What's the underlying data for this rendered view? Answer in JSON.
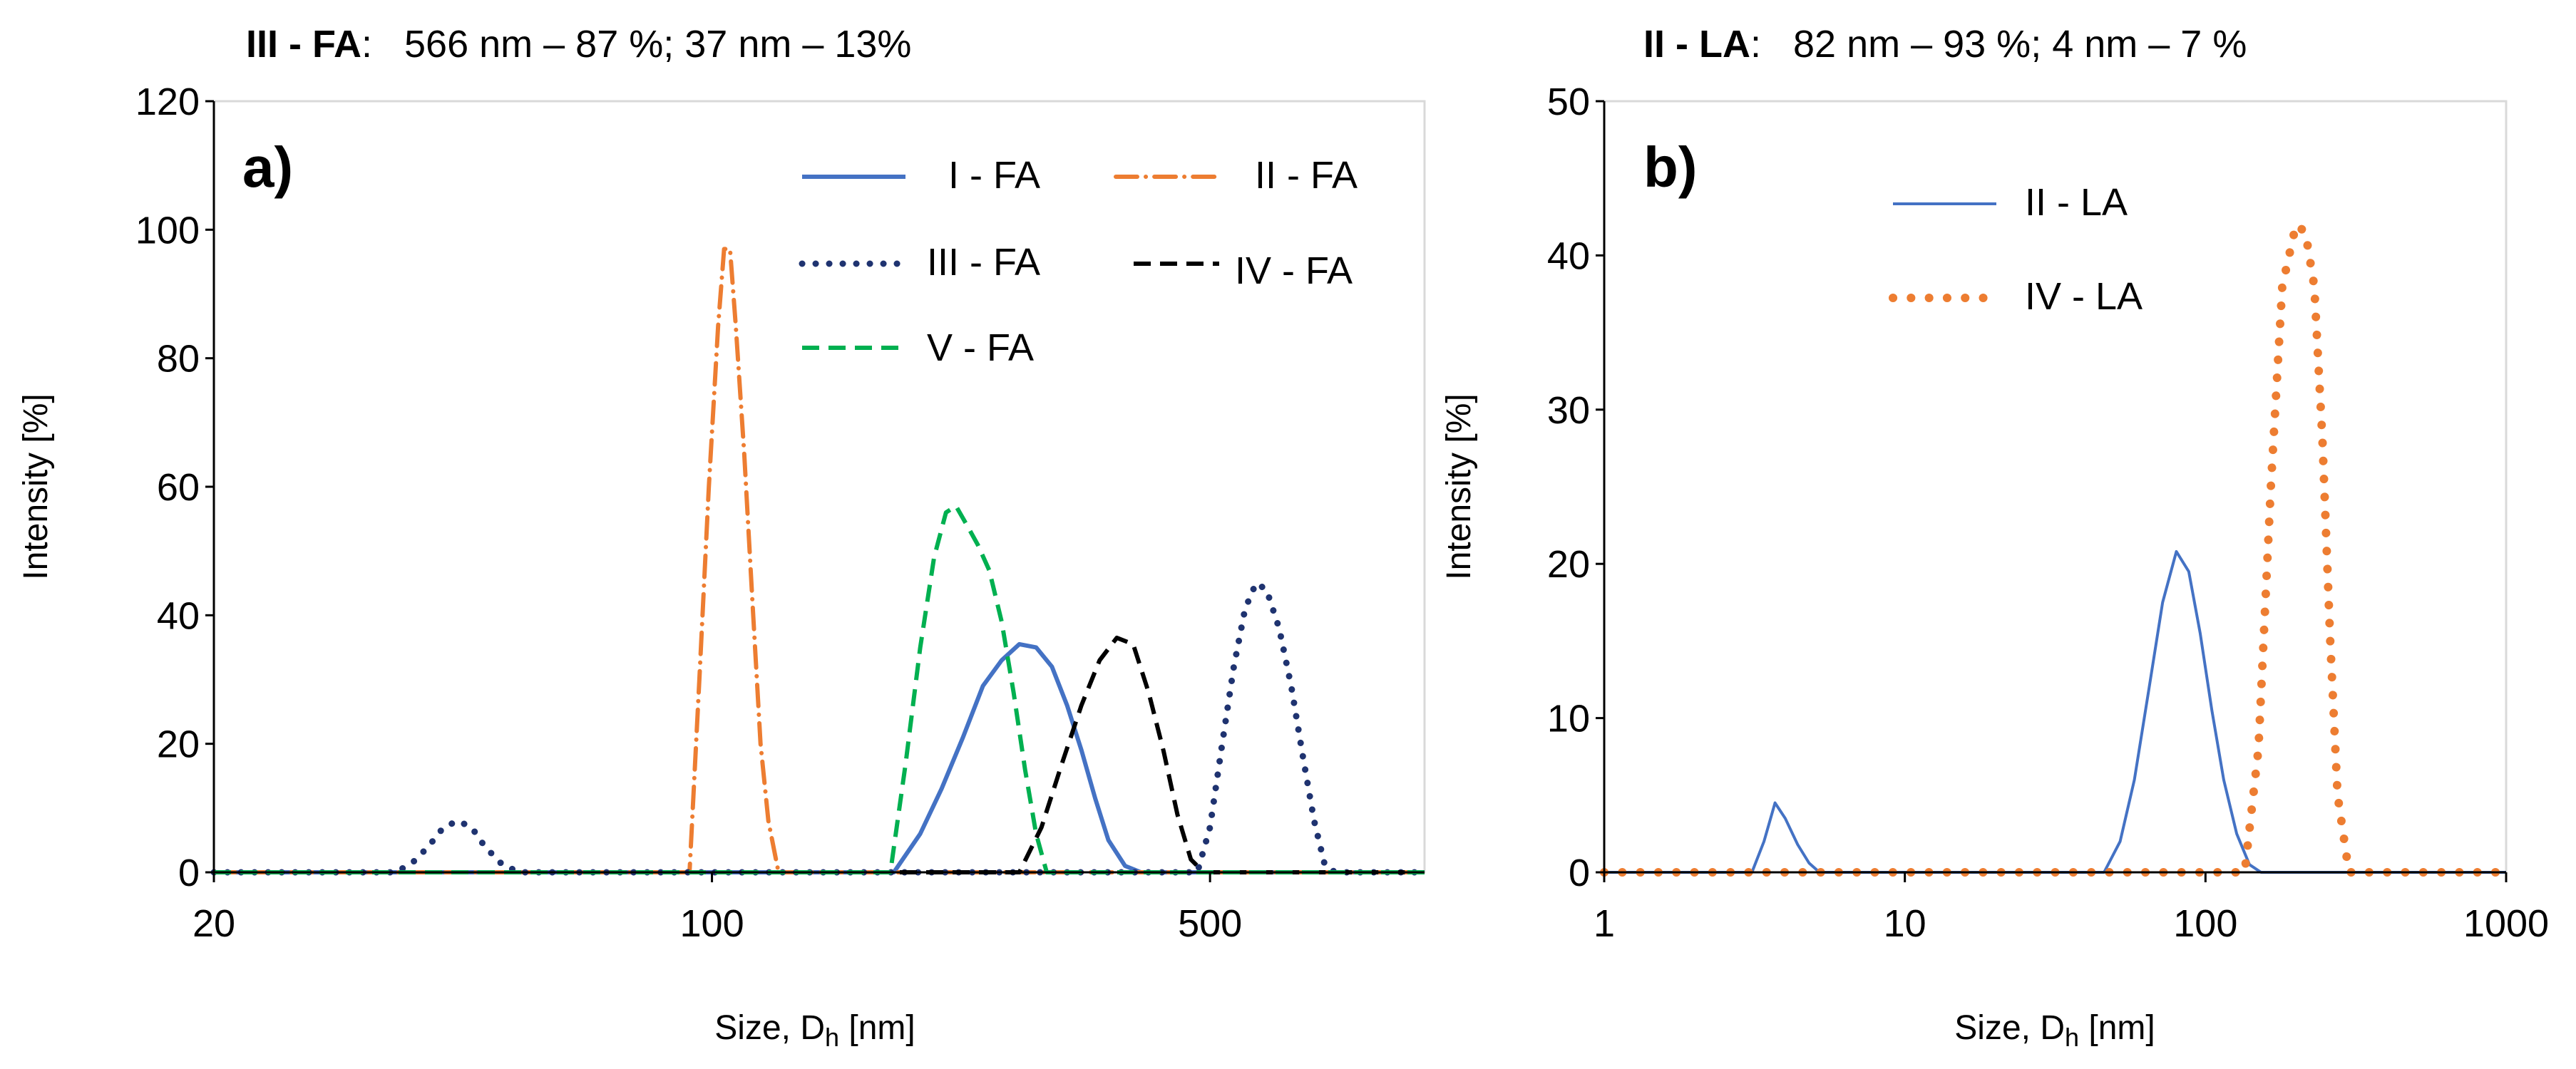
{
  "chart_data": [
    {
      "id": "a",
      "type": "line",
      "panel_label": "a)",
      "header": {
        "bold": "III - FA",
        "text": ":   566 nm – 87 %; 37 nm – 13%"
      },
      "xlabel": {
        "main": "Size, D",
        "sub": "h",
        "unit": " [nm]"
      },
      "ylabel": "Intensity [%]",
      "xscale": "log",
      "xlim": [
        20,
        1000
      ],
      "ylim": [
        0,
        120
      ],
      "xticks": [
        20,
        100,
        500
      ],
      "xtick_labels": [
        "20",
        "100",
        "500"
      ],
      "yticks": [
        0,
        20,
        40,
        60,
        80,
        100,
        120
      ],
      "ytick_labels": [
        "0",
        "20",
        "40",
        "60",
        "80",
        "100",
        "120"
      ],
      "grid": false,
      "legend_position": "top-right",
      "series": [
        {
          "name": "I - FA",
          "color": "#4472C4",
          "style": "solid",
          "x": [
            20,
            180,
            196,
            210,
            225,
            240,
            255,
            270,
            285,
            300,
            315,
            330,
            345,
            360,
            380,
            400,
            1000
          ],
          "y": [
            0,
            0,
            6,
            13,
            21,
            29,
            33,
            35.5,
            35,
            32,
            26,
            19,
            11.5,
            5,
            1,
            0,
            0
          ]
        },
        {
          "name": "II - FA",
          "color": "#ED7D31",
          "style": "dashdot",
          "x": [
            20,
            93,
            96,
            99,
            102,
            104,
            106,
            108,
            111,
            114,
            117,
            120,
            124,
            1000
          ],
          "y": [
            0,
            0,
            30,
            60,
            85,
            97,
            97,
            85,
            65,
            42,
            20,
            8,
            0,
            0
          ]
        },
        {
          "name": "III - FA",
          "color": "#1F3370",
          "style": "dotted",
          "x": [
            20,
            36,
            38,
            40,
            42,
            44,
            46,
            48,
            51,
            54,
            480,
            500,
            520,
            540,
            560,
            580,
            600,
            625,
            650,
            675,
            700,
            725,
            750,
            1000
          ],
          "y": [
            0,
            0,
            1.5,
            4,
            7,
            8,
            7,
            4,
            1,
            0,
            0,
            7,
            20,
            32,
            41,
            45,
            44,
            38,
            29,
            18,
            8,
            1,
            0,
            0
          ]
        },
        {
          "name": "IV - FA",
          "color": "#000000",
          "style": "dashed",
          "x": [
            20,
            270,
            290,
            310,
            330,
            350,
            370,
            390,
            410,
            430,
            450,
            470,
            490,
            1000
          ],
          "y": [
            0,
            0,
            7,
            17,
            26,
            33,
            36.5,
            35.5,
            28,
            19,
            9,
            2,
            0,
            0
          ]
        },
        {
          "name": "V - FA",
          "color": "#00B050",
          "style": "dashed",
          "x": [
            20,
            178,
            187,
            196,
            205,
            213,
            220,
            228,
            236,
            245,
            255,
            265,
            275,
            285,
            295,
            1000
          ],
          "y": [
            0,
            0,
            17,
            35,
            49,
            56,
            57,
            54,
            51,
            47,
            39,
            28,
            16,
            6,
            0,
            0
          ]
        }
      ]
    },
    {
      "id": "b",
      "type": "line",
      "panel_label": "b)",
      "header": {
        "bold": "II - LA",
        "text": ":   82 nm – 93 %; 4 nm – 7 %"
      },
      "xlabel": {
        "main": "Size, D",
        "sub": "h",
        "unit": " [nm]"
      },
      "ylabel": "Intensity [%]",
      "xscale": "log",
      "xlim": [
        1,
        1000
      ],
      "ylim": [
        0,
        50
      ],
      "xticks": [
        1,
        10,
        100,
        1000
      ],
      "xtick_labels": [
        "1",
        "10",
        "100",
        "1000"
      ],
      "yticks": [
        0,
        10,
        20,
        30,
        40,
        50
      ],
      "ytick_labels": [
        "0",
        "10",
        "20",
        "30",
        "40",
        "50"
      ],
      "grid": false,
      "legend_position": "top-left",
      "series": [
        {
          "name": "II - LA",
          "color": "#4472C4",
          "style": "solid",
          "x": [
            1,
            3.1,
            3.4,
            3.7,
            4.0,
            4.4,
            4.8,
            5.2,
            46,
            52,
            58,
            65,
            72,
            80,
            88,
            96,
            105,
            115,
            127,
            140,
            153,
            1000
          ],
          "y": [
            0,
            0,
            2,
            4.5,
            3.5,
            1.8,
            0.6,
            0,
            0,
            2,
            6,
            12,
            17.5,
            20.8,
            19.5,
            15.5,
            10.5,
            6,
            2.5,
            0.5,
            0,
            0
          ]
        },
        {
          "name": "IV - LA",
          "color": "#ED7D31",
          "style": "dotted",
          "x": [
            1,
            135,
            150,
            165,
            180,
            200,
            215,
            230,
            245,
            260,
            275,
            300,
            1000
          ],
          "y": [
            0,
            0,
            8,
            25,
            38,
            42,
            41.5,
            38,
            28,
            15,
            5,
            0,
            0
          ]
        }
      ]
    }
  ]
}
